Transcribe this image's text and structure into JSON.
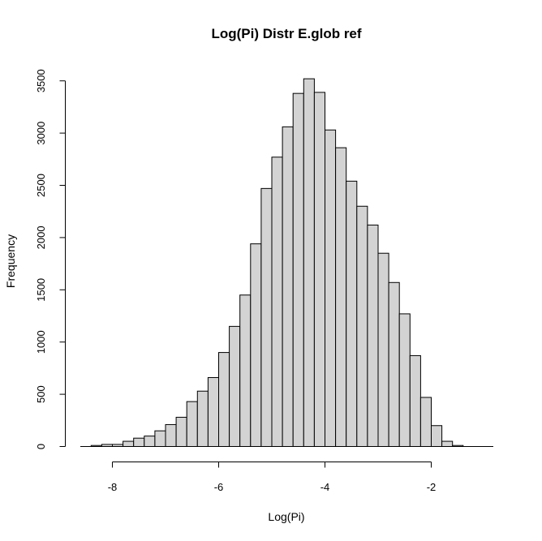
{
  "chart_data": {
    "type": "bar",
    "title": "Log(Pi) Distr E.glob ref",
    "xlabel": "Log(Pi)",
    "ylabel": "Frequency",
    "bin_width": 0.2,
    "bins": [
      {
        "start": -8.4,
        "end": -8.2,
        "count": 10
      },
      {
        "start": -8.2,
        "end": -8.0,
        "count": 20
      },
      {
        "start": -8.0,
        "end": -7.8,
        "count": 20
      },
      {
        "start": -7.8,
        "end": -7.6,
        "count": 50
      },
      {
        "start": -7.6,
        "end": -7.4,
        "count": 80
      },
      {
        "start": -7.4,
        "end": -7.2,
        "count": 100
      },
      {
        "start": -7.2,
        "end": -7.0,
        "count": 150
      },
      {
        "start": -7.0,
        "end": -6.8,
        "count": 210
      },
      {
        "start": -6.8,
        "end": -6.6,
        "count": 280
      },
      {
        "start": -6.6,
        "end": -6.4,
        "count": 430
      },
      {
        "start": -6.4,
        "end": -6.2,
        "count": 530
      },
      {
        "start": -6.2,
        "end": -6.0,
        "count": 660
      },
      {
        "start": -6.0,
        "end": -5.8,
        "count": 900
      },
      {
        "start": -5.8,
        "end": -5.6,
        "count": 1150
      },
      {
        "start": -5.6,
        "end": -5.4,
        "count": 1450
      },
      {
        "start": -5.4,
        "end": -5.2,
        "count": 1940
      },
      {
        "start": -5.2,
        "end": -5.0,
        "count": 2470
      },
      {
        "start": -5.0,
        "end": -4.8,
        "count": 2770
      },
      {
        "start": -4.8,
        "end": -4.6,
        "count": 3060
      },
      {
        "start": -4.6,
        "end": -4.4,
        "count": 3380
      },
      {
        "start": -4.4,
        "end": -4.2,
        "count": 3520
      },
      {
        "start": -4.2,
        "end": -4.0,
        "count": 3390
      },
      {
        "start": -4.0,
        "end": -3.8,
        "count": 3030
      },
      {
        "start": -3.8,
        "end": -3.6,
        "count": 2860
      },
      {
        "start": -3.6,
        "end": -3.4,
        "count": 2540
      },
      {
        "start": -3.4,
        "end": -3.2,
        "count": 2300
      },
      {
        "start": -3.2,
        "end": -3.0,
        "count": 2120
      },
      {
        "start": -3.0,
        "end": -2.8,
        "count": 1850
      },
      {
        "start": -2.8,
        "end": -2.6,
        "count": 1570
      },
      {
        "start": -2.6,
        "end": -2.4,
        "count": 1270
      },
      {
        "start": -2.4,
        "end": -2.2,
        "count": 870
      },
      {
        "start": -2.2,
        "end": -2.0,
        "count": 470
      },
      {
        "start": -2.0,
        "end": -1.8,
        "count": 200
      },
      {
        "start": -1.8,
        "end": -1.6,
        "count": 50
      },
      {
        "start": -1.6,
        "end": -1.4,
        "count": 10
      }
    ],
    "x_ticks": [
      -8,
      -6,
      -4,
      -2
    ],
    "x_tick_labels": [
      "-8",
      "-6",
      "-4",
      "-2"
    ],
    "y_ticks": [
      0,
      500,
      1000,
      1500,
      2000,
      2500,
      3000,
      3500
    ],
    "y_tick_labels": [
      "0",
      "500",
      "1000",
      "1500",
      "2000",
      "2500",
      "3000",
      "3500"
    ],
    "xlim": [
      -8.8,
      -0.8
    ],
    "ylim": [
      0,
      3600
    ],
    "grid": false,
    "legend": "none",
    "bar_fill": "#d3d3d3",
    "bar_stroke": "#000000"
  }
}
